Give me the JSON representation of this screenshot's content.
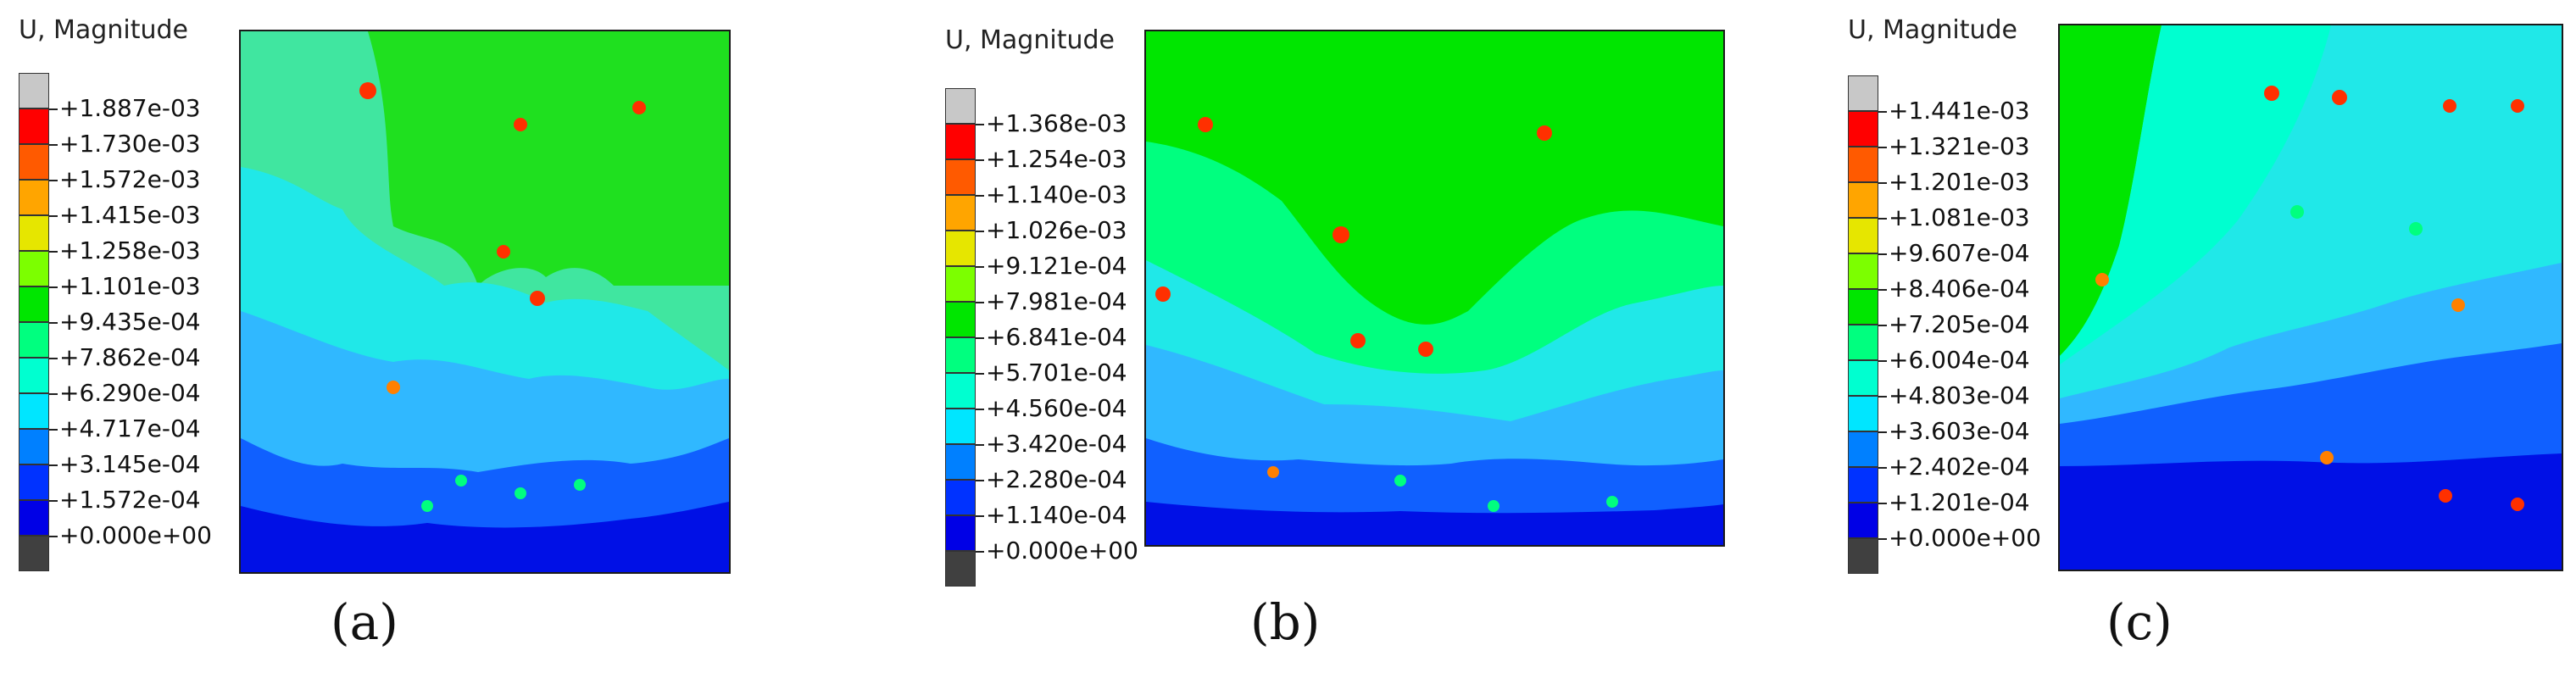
{
  "panels": [
    {
      "title": "U, Magnitude",
      "caption": "(a)",
      "legend": [
        "+1.887e-03",
        "+1.730e-03",
        "+1.572e-03",
        "+1.415e-03",
        "+1.258e-03",
        "+1.101e-03",
        "+9.435e-04",
        "+7.862e-04",
        "+6.290e-04",
        "+4.717e-04",
        "+3.145e-04",
        "+1.572e-04",
        "+0.000e+00"
      ]
    },
    {
      "title": "U, Magnitude",
      "caption": "(b)",
      "legend": [
        "+1.368e-03",
        "+1.254e-03",
        "+1.140e-03",
        "+1.026e-03",
        "+9.121e-04",
        "+7.981e-04",
        "+6.841e-04",
        "+5.701e-04",
        "+4.560e-04",
        "+3.420e-04",
        "+2.280e-04",
        "+1.140e-04",
        "+0.000e+00"
      ]
    },
    {
      "title": "U, Magnitude",
      "caption": "(c)",
      "legend": [
        "+1.441e-03",
        "+1.321e-03",
        "+1.201e-03",
        "+1.081e-03",
        "+9.607e-04",
        "+8.406e-04",
        "+7.205e-04",
        "+6.004e-04",
        "+4.803e-04",
        "+3.603e-04",
        "+2.402e-04",
        "+1.201e-04",
        "+0.000e+00"
      ]
    }
  ],
  "colormap": [
    "#c8c8c8",
    "#ff0000",
    "#ff5a00",
    "#ffa500",
    "#e6e600",
    "#7cff00",
    "#00e600",
    "#00ff7f",
    "#00ffd0",
    "#00e6ff",
    "#0080ff",
    "#0032ff",
    "#0000e6",
    "#404040"
  ]
}
